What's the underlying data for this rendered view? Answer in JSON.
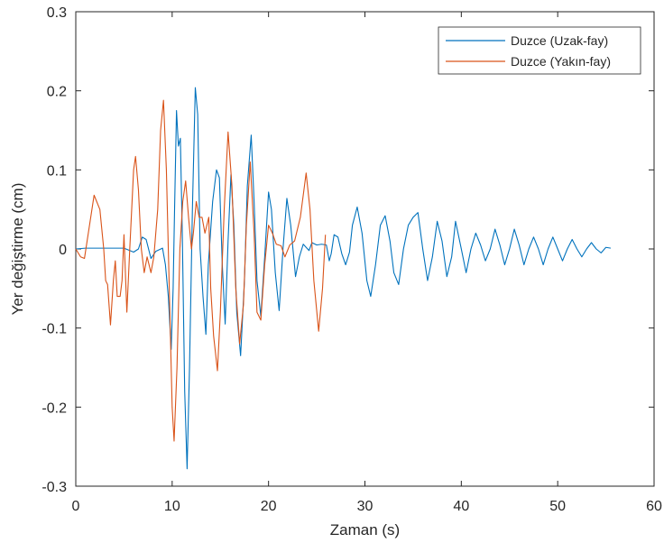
{
  "chart_data": {
    "type": "line",
    "xlabel": "Zaman (s)",
    "ylabel": "Yer değiştirme (cm)",
    "xlim": [
      0,
      60
    ],
    "ylim": [
      -0.3,
      0.3
    ],
    "xticks": [
      "0",
      "10",
      "20",
      "30",
      "40",
      "50",
      "60"
    ],
    "yticks": [
      "0.3",
      "0.2",
      "0.1",
      "0",
      "-0.1",
      "-0.2",
      "-0.3"
    ],
    "grid": false,
    "legend_position": "top-right",
    "series": [
      {
        "name": "Duzce (Uzak-fay)",
        "color": "#0072BD",
        "points": [
          [
            0,
            0
          ],
          [
            1,
            0.001
          ],
          [
            3,
            0.001
          ],
          [
            5,
            0.001
          ],
          [
            6,
            -0.004
          ],
          [
            6.5,
            0
          ],
          [
            6.9,
            0.015
          ],
          [
            7.3,
            0.012
          ],
          [
            7.8,
            -0.012
          ],
          [
            8.3,
            -0.003
          ],
          [
            9,
            0.001
          ],
          [
            9.3,
            -0.02
          ],
          [
            9.6,
            -0.06
          ],
          [
            9.9,
            -0.127
          ],
          [
            10.1,
            -0.05
          ],
          [
            10.25,
            0.05
          ],
          [
            10.45,
            0.175
          ],
          [
            10.65,
            0.13
          ],
          [
            10.85,
            0.14
          ],
          [
            11.05,
            0.02
          ],
          [
            11.3,
            -0.18
          ],
          [
            11.55,
            -0.278
          ],
          [
            11.8,
            -0.15
          ],
          [
            12.1,
            0.05
          ],
          [
            12.4,
            0.204
          ],
          [
            12.65,
            0.17
          ],
          [
            12.9,
            0
          ],
          [
            13.2,
            -0.06
          ],
          [
            13.5,
            -0.108
          ],
          [
            13.75,
            -0.02
          ],
          [
            14.2,
            0.06
          ],
          [
            14.6,
            0.1
          ],
          [
            14.9,
            0.09
          ],
          [
            15.2,
            -0.02
          ],
          [
            15.5,
            -0.095
          ],
          [
            15.8,
            0.01
          ],
          [
            16.1,
            0.094
          ],
          [
            16.4,
            0.03
          ],
          [
            16.7,
            -0.08
          ],
          [
            17.1,
            -0.135
          ],
          [
            17.5,
            -0.04
          ],
          [
            17.8,
            0.08
          ],
          [
            18.2,
            0.144
          ],
          [
            18.5,
            0.06
          ],
          [
            18.8,
            -0.04
          ],
          [
            19.2,
            -0.085
          ],
          [
            19.6,
            -0.01
          ],
          [
            20,
            0.072
          ],
          [
            20.3,
            0.05
          ],
          [
            20.7,
            -0.03
          ],
          [
            21.1,
            -0.078
          ],
          [
            21.5,
            0
          ],
          [
            21.9,
            0.064
          ],
          [
            22.3,
            0.03
          ],
          [
            22.8,
            -0.035
          ],
          [
            23.2,
            -0.01
          ],
          [
            23.6,
            0.006
          ],
          [
            24.2,
            -0.002
          ],
          [
            24.5,
            0.008
          ],
          [
            25,
            0.005
          ],
          [
            25.5,
            0.006
          ],
          [
            26,
            0.005
          ],
          [
            26.3,
            -0.015
          ],
          [
            26.5,
            -0.006
          ],
          [
            26.8,
            0.018
          ],
          [
            27.2,
            0.015
          ],
          [
            27.6,
            -0.006
          ],
          [
            28,
            -0.02
          ],
          [
            28.4,
            -0.004
          ],
          [
            28.7,
            0.03
          ],
          [
            29.2,
            0.053
          ],
          [
            29.7,
            0.02
          ],
          [
            30.2,
            -0.04
          ],
          [
            30.6,
            -0.06
          ],
          [
            31.1,
            -0.02
          ],
          [
            31.6,
            0.03
          ],
          [
            32.1,
            0.042
          ],
          [
            32.6,
            0.01
          ],
          [
            33,
            -0.03
          ],
          [
            33.5,
            -0.045
          ],
          [
            34,
            0
          ],
          [
            34.5,
            0.03
          ],
          [
            35,
            0.04
          ],
          [
            35.5,
            0.046
          ],
          [
            36,
            0
          ],
          [
            36.5,
            -0.04
          ],
          [
            37,
            -0.01
          ],
          [
            37.5,
            0.035
          ],
          [
            38,
            0.01
          ],
          [
            38.5,
            -0.035
          ],
          [
            39,
            -0.01
          ],
          [
            39.4,
            0.035
          ],
          [
            40,
            0
          ],
          [
            40.5,
            -0.03
          ],
          [
            41,
            0
          ],
          [
            41.5,
            0.02
          ],
          [
            42,
            0.005
          ],
          [
            42.5,
            -0.015
          ],
          [
            43,
            0
          ],
          [
            43.5,
            0.025
          ],
          [
            44,
            0.005
          ],
          [
            44.5,
            -0.02
          ],
          [
            45,
            0
          ],
          [
            45.5,
            0.025
          ],
          [
            46,
            0.005
          ],
          [
            46.5,
            -0.02
          ],
          [
            47,
            0
          ],
          [
            47.5,
            0.015
          ],
          [
            48,
            0
          ],
          [
            48.5,
            -0.02
          ],
          [
            49,
            0
          ],
          [
            49.5,
            0.015
          ],
          [
            50,
            0
          ],
          [
            50.5,
            -0.015
          ],
          [
            51,
            0
          ],
          [
            51.5,
            0.012
          ],
          [
            52,
            0
          ],
          [
            52.5,
            -0.01
          ],
          [
            53,
            0
          ],
          [
            53.5,
            0.008
          ],
          [
            54,
            0
          ],
          [
            54.5,
            -0.005
          ],
          [
            55,
            0.002
          ],
          [
            55.5,
            0.001
          ]
        ]
      },
      {
        "name": "Duzce (Yakın-fay)",
        "color": "#D95319",
        "points": [
          [
            0,
            0
          ],
          [
            0.5,
            -0.01
          ],
          [
            0.9,
            -0.012
          ],
          [
            1.3,
            0.02
          ],
          [
            1.9,
            0.068
          ],
          [
            2.5,
            0.05
          ],
          [
            2.9,
            0
          ],
          [
            3.1,
            -0.04
          ],
          [
            3.3,
            -0.045
          ],
          [
            3.6,
            -0.096
          ],
          [
            3.9,
            -0.04
          ],
          [
            4.1,
            -0.015
          ],
          [
            4.3,
            -0.06
          ],
          [
            4.6,
            -0.06
          ],
          [
            4.8,
            -0.04
          ],
          [
            5,
            0.018
          ],
          [
            5.3,
            -0.08
          ],
          [
            5.6,
            0
          ],
          [
            6,
            0.1
          ],
          [
            6.2,
            0.117
          ],
          [
            6.5,
            0.075
          ],
          [
            6.8,
            0
          ],
          [
            7.1,
            -0.03
          ],
          [
            7.4,
            -0.01
          ],
          [
            7.8,
            -0.03
          ],
          [
            8.1,
            -0.01
          ],
          [
            8.5,
            0.05
          ],
          [
            8.8,
            0.15
          ],
          [
            9.1,
            0.188
          ],
          [
            9.4,
            0.1
          ],
          [
            9.7,
            -0.05
          ],
          [
            10,
            -0.2
          ],
          [
            10.2,
            -0.243
          ],
          [
            10.5,
            -0.15
          ],
          [
            10.8,
            0
          ],
          [
            11.1,
            0.06
          ],
          [
            11.4,
            0.086
          ],
          [
            11.7,
            0.04
          ],
          [
            12,
            0
          ],
          [
            12.2,
            0.02
          ],
          [
            12.5,
            0.06
          ],
          [
            12.8,
            0.04
          ],
          [
            13.1,
            0.04
          ],
          [
            13.4,
            0.02
          ],
          [
            13.8,
            0.04
          ],
          [
            14,
            -0.05
          ],
          [
            14.3,
            -0.11
          ],
          [
            14.7,
            -0.154
          ],
          [
            15,
            -0.08
          ],
          [
            15.4,
            0.05
          ],
          [
            15.8,
            0.148
          ],
          [
            16.2,
            0.08
          ],
          [
            16.6,
            -0.05
          ],
          [
            17,
            -0.12
          ],
          [
            17.4,
            -0.07
          ],
          [
            17.7,
            0.03
          ],
          [
            18.1,
            0.11
          ],
          [
            18.5,
            0.02
          ],
          [
            18.8,
            -0.08
          ],
          [
            19.2,
            -0.09
          ],
          [
            19.6,
            -0.02
          ],
          [
            20,
            0.03
          ],
          [
            20.4,
            0.02
          ],
          [
            20.8,
            0.006
          ],
          [
            21.3,
            0.004
          ],
          [
            21.7,
            -0.01
          ],
          [
            22.2,
            0.005
          ],
          [
            22.7,
            0.01
          ],
          [
            23.3,
            0.04
          ],
          [
            23.9,
            0.096
          ],
          [
            24.3,
            0.05
          ],
          [
            24.7,
            -0.04
          ],
          [
            25.2,
            -0.104
          ],
          [
            25.6,
            -0.05
          ],
          [
            25.9,
            0.018
          ]
        ]
      }
    ]
  }
}
